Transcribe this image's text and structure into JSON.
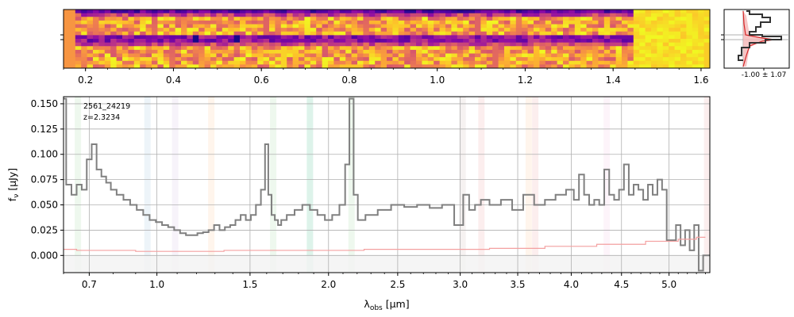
{
  "chart_data": [
    {
      "type": "heatmap",
      "description_role": "2D spectrum",
      "x_ticks": [
        "0.2",
        "0.4",
        "0.6",
        "0.8",
        "1.0",
        "1.2",
        "1.4",
        "1.6"
      ],
      "x_tick_values": [
        0.2,
        0.4,
        0.6,
        0.8,
        1.0,
        1.2,
        1.4,
        1.6
      ],
      "xlim": [
        0.15,
        1.62
      ],
      "colormap": "plasma",
      "colors": {
        "low": "#0d0887",
        "mid": "#cc4778",
        "high": "#f0f921"
      }
    },
    {
      "type": "line",
      "description_role": "cross-dispersion profile",
      "annotation": "-1.00 ± 1.07",
      "colors": {
        "profile": "#333333",
        "model": "#d62728",
        "fill": "#f4b6b6"
      }
    },
    {
      "type": "line",
      "annotation_id": "2561_24219",
      "annotation_z": "z=2.3234",
      "xlabel_html": "λ_obs [μm]",
      "ylabel_html": "f_ν [μJy]",
      "xlim": [
        0.6,
        5.45
      ],
      "ylim": [
        -0.017,
        0.157
      ],
      "x_ticks": [
        "0.7",
        "1.0",
        "1.5",
        "2.0",
        "2.5",
        "3.0",
        "3.5",
        "4.0",
        "4.5",
        "5.0"
      ],
      "x_tick_values": [
        0.7,
        1.0,
        1.5,
        2.0,
        2.5,
        3.0,
        3.5,
        4.0,
        4.5,
        5.0
      ],
      "y_ticks": [
        "0.000",
        "0.025",
        "0.050",
        "0.075",
        "0.100",
        "0.125",
        "0.150"
      ],
      "y_tick_values": [
        0.0,
        0.025,
        0.05,
        0.075,
        0.1,
        0.125,
        0.15
      ],
      "grid": true,
      "line_bands": [
        {
          "x": 0.655,
          "color": "#2ca02c"
        },
        {
          "x": 0.955,
          "color": "#1f77b4"
        },
        {
          "x": 1.09,
          "color": "#9467bd"
        },
        {
          "x": 1.28,
          "color": "#ff7f0e"
        },
        {
          "x": 1.64,
          "color": "#2ca02c"
        },
        {
          "x": 1.875,
          "color": "#17becf"
        },
        {
          "x": 1.875,
          "color": "#2ca02c"
        },
        {
          "x": 2.16,
          "color": "#2ca02c"
        },
        {
          "x": 3.02,
          "color": "#8c564b"
        },
        {
          "x": 3.18,
          "color": "#d62728"
        },
        {
          "x": 3.6,
          "color": "#ff7f0e"
        },
        {
          "x": 3.66,
          "color": "#d62728"
        },
        {
          "x": 4.35,
          "color": "#e377c2"
        },
        {
          "x": 5.42,
          "color": "#d62728"
        }
      ],
      "series": [
        {
          "color": "#808080",
          "x": [
            0.6,
            0.62,
            0.64,
            0.66,
            0.68,
            0.7,
            0.72,
            0.74,
            0.76,
            0.78,
            0.8,
            0.83,
            0.86,
            0.89,
            0.92,
            0.95,
            0.98,
            1.01,
            1.04,
            1.07,
            1.1,
            1.13,
            1.16,
            1.19,
            1.22,
            1.25,
            1.28,
            1.31,
            1.34,
            1.37,
            1.4,
            1.43,
            1.46,
            1.49,
            1.52,
            1.55,
            1.58,
            1.6,
            1.62,
            1.64,
            1.66,
            1.68,
            1.7,
            1.75,
            1.8,
            1.85,
            1.9,
            1.95,
            2.0,
            2.05,
            2.1,
            2.13,
            2.16,
            2.19,
            2.22,
            2.3,
            2.4,
            2.5,
            2.6,
            2.7,
            2.8,
            2.9,
            3.0,
            3.05,
            3.1,
            3.15,
            3.2,
            3.3,
            3.4,
            3.5,
            3.6,
            3.7,
            3.8,
            3.9,
            4.0,
            4.05,
            4.1,
            4.15,
            4.2,
            4.25,
            4.3,
            4.35,
            4.4,
            4.45,
            4.5,
            4.55,
            4.6,
            4.65,
            4.7,
            4.75,
            4.8,
            4.85,
            4.9,
            4.95,
            5.0,
            5.05,
            5.1,
            5.15,
            5.2,
            5.25,
            5.3,
            5.35,
            5.4,
            5.45
          ],
          "values": [
            0.155,
            0.07,
            0.06,
            0.07,
            0.065,
            0.095,
            0.11,
            0.085,
            0.078,
            0.072,
            0.065,
            0.06,
            0.055,
            0.05,
            0.045,
            0.04,
            0.035,
            0.033,
            0.03,
            0.028,
            0.025,
            0.022,
            0.02,
            0.02,
            0.022,
            0.023,
            0.025,
            0.03,
            0.025,
            0.028,
            0.03,
            0.035,
            0.04,
            0.035,
            0.04,
            0.05,
            0.065,
            0.11,
            0.06,
            0.04,
            0.035,
            0.03,
            0.035,
            0.04,
            0.045,
            0.05,
            0.045,
            0.04,
            0.035,
            0.04,
            0.05,
            0.09,
            0.155,
            0.06,
            0.035,
            0.04,
            0.045,
            0.05,
            0.048,
            0.05,
            0.047,
            0.05,
            0.03,
            0.06,
            0.045,
            0.05,
            0.055,
            0.05,
            0.055,
            0.045,
            0.06,
            0.05,
            0.055,
            0.06,
            0.065,
            0.055,
            0.08,
            0.06,
            0.05,
            0.055,
            0.05,
            0.085,
            0.06,
            0.055,
            0.065,
            0.09,
            0.06,
            0.07,
            0.065,
            0.055,
            0.07,
            0.06,
            0.075,
            0.065,
            0.015,
            0.015,
            0.03,
            0.01,
            0.025,
            0.005,
            0.03,
            -0.015,
            0.0,
            0.0
          ]
        },
        {
          "color": "#f4a0a0",
          "x": [
            0.6,
            0.7,
            0.8,
            1.0,
            1.2,
            1.5,
            1.8,
            2.0,
            2.5,
            3.0,
            3.5,
            4.0,
            4.5,
            5.0,
            5.2,
            5.4
          ],
          "values": [
            0.006,
            0.005,
            0.005,
            0.004,
            0.004,
            0.005,
            0.005,
            0.005,
            0.006,
            0.006,
            0.007,
            0.009,
            0.011,
            0.014,
            0.016,
            0.018
          ]
        }
      ]
    }
  ]
}
